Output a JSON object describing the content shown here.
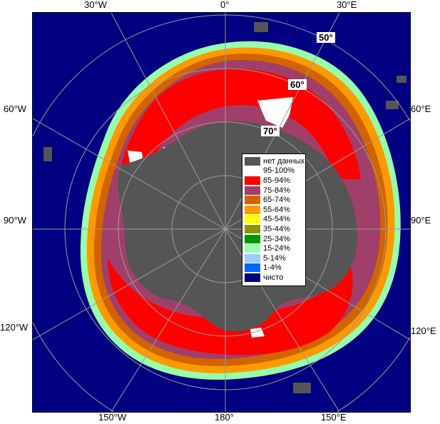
{
  "map": {
    "longitude_labels": {
      "w30": "30°W",
      "zero": "0°",
      "e30": "30°E",
      "w60": "60°W",
      "e60": "60°E",
      "w90": "90°W",
      "e90": "90°E",
      "w120": "120°W",
      "e120": "120°E",
      "w150": "150°W",
      "e180": "180°",
      "e150": "150°E"
    },
    "latitude_labels": {
      "lat50": "50°",
      "lat60": "60°",
      "lat70": "70°"
    }
  },
  "legend": {
    "items": [
      {
        "label": "нет данных",
        "color": "#555555"
      },
      {
        "label": "95-100%",
        "color": "#ffffff"
      },
      {
        "label": "85-94%",
        "color": "#ff0000"
      },
      {
        "label": "75-84%",
        "color": "#a0406a"
      },
      {
        "label": "65-74%",
        "color": "#d26400"
      },
      {
        "label": "55-64%",
        "color": "#ff9900"
      },
      {
        "label": "45-54%",
        "color": "#ffff00"
      },
      {
        "label": "35-44%",
        "color": "#8c9600"
      },
      {
        "label": "25-34%",
        "color": "#009600"
      },
      {
        "label": "15-24%",
        "color": "#96ffaa"
      },
      {
        "label": "5-14%",
        "color": "#99ccff"
      },
      {
        "label": "1-4%",
        "color": "#0066ff"
      },
      {
        "label": "чисто",
        "color": "#000080"
      }
    ]
  }
}
